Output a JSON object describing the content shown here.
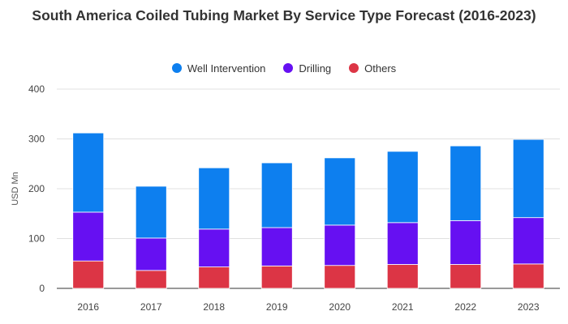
{
  "chart_data": {
    "type": "bar",
    "stacked": true,
    "title": "South America Coiled Tubing Market By Service Type Forecast (2016-2023)",
    "xlabel": "",
    "ylabel": "USD Mn",
    "ylim": [
      0,
      400
    ],
    "yticks": [
      "0",
      "100",
      "200",
      "300",
      "400"
    ],
    "grid": true,
    "legend_position": "top-center",
    "categories": [
      "2016",
      "2017",
      "2018",
      "2019",
      "2020",
      "2021",
      "2022",
      "2023"
    ],
    "series": [
      {
        "name": "Others",
        "color": "#dc3545",
        "values": [
          55,
          36,
          43,
          45,
          46,
          48,
          48,
          49
        ]
      },
      {
        "name": "Drilling",
        "color": "#6610f2",
        "values": [
          98,
          65,
          76,
          77,
          81,
          84,
          88,
          93
        ]
      },
      {
        "name": "Well Intervention",
        "color": "#0d7fef",
        "values": [
          159,
          104,
          123,
          130,
          135,
          143,
          150,
          157
        ]
      }
    ]
  },
  "legend": {
    "items": [
      {
        "label": "Well Intervention",
        "color": "#0d7fef"
      },
      {
        "label": "Drilling",
        "color": "#6610f2"
      },
      {
        "label": "Others",
        "color": "#dc3545"
      }
    ]
  }
}
